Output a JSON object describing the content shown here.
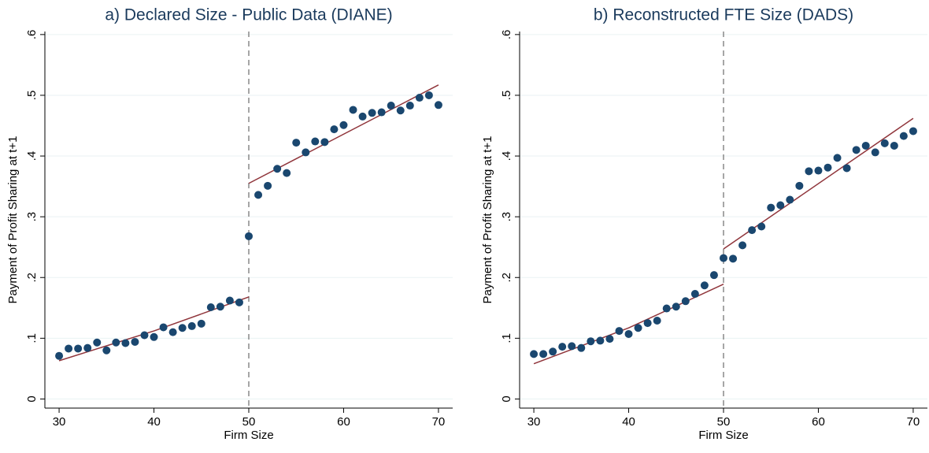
{
  "chart_data": [
    {
      "type": "scatter",
      "title": "a) Declared Size - Public Data (DIANE)",
      "xlabel": "Firm Size",
      "ylabel": "Payment of Profit Sharing at t+1",
      "x": [
        30,
        31,
        32,
        33,
        34,
        35,
        36,
        37,
        38,
        39,
        40,
        41,
        42,
        43,
        44,
        45,
        46,
        47,
        48,
        49,
        50,
        51,
        52,
        53,
        54,
        55,
        56,
        57,
        58,
        59,
        60,
        61,
        62,
        63,
        64,
        65,
        66,
        67,
        68,
        69,
        70
      ],
      "points": {
        "color": "#1a476f",
        "values": [
          0.071,
          0.083,
          0.083,
          0.084,
          0.093,
          0.08,
          0.093,
          0.092,
          0.094,
          0.105,
          0.102,
          0.118,
          0.11,
          0.117,
          0.12,
          0.124,
          0.151,
          0.152,
          0.162,
          0.159,
          0.268,
          0.336,
          0.351,
          0.379,
          0.372,
          0.422,
          0.406,
          0.424,
          0.423,
          0.444,
          0.451,
          0.476,
          0.465,
          0.471,
          0.472,
          0.483,
          0.475,
          0.483,
          0.496,
          0.5,
          0.484
        ]
      },
      "fits": [
        {
          "color": "#90353b",
          "x": [
            30,
            40,
            50
          ],
          "values": [
            0.063,
            0.112,
            0.168
          ]
        },
        {
          "color": "#90353b",
          "x": [
            50,
            70
          ],
          "values": [
            0.355,
            0.517
          ]
        }
      ],
      "cutoff": 50,
      "cutoff_color": "#888888",
      "xlim": [
        28.5,
        71.5
      ],
      "ylim": [
        -0.015,
        0.605
      ],
      "xticks": [
        30,
        40,
        50,
        60,
        70
      ],
      "yticks": [
        0,
        {
          "value": 0.1,
          "label": ".1"
        },
        {
          "value": 0.2,
          "label": ".2"
        },
        {
          "value": 0.3,
          "label": ".3"
        },
        {
          "value": 0.4,
          "label": ".4"
        },
        {
          "value": 0.5,
          "label": ".5"
        },
        {
          "value": 0.6,
          "label": ".6"
        }
      ],
      "grid": true
    },
    {
      "type": "scatter",
      "title": "b) Reconstructed FTE Size (DADS)",
      "xlabel": "Firm Size",
      "ylabel": "Payment of Profit Sharing at t+1",
      "x": [
        30,
        31,
        32,
        33,
        34,
        35,
        36,
        37,
        38,
        39,
        40,
        41,
        42,
        43,
        44,
        45,
        46,
        47,
        48,
        49,
        50,
        51,
        52,
        53,
        54,
        55,
        56,
        57,
        58,
        59,
        60,
        61,
        62,
        63,
        64,
        65,
        66,
        67,
        68,
        69,
        70
      ],
      "points": {
        "color": "#1a476f",
        "values": [
          0.074,
          0.074,
          0.078,
          0.086,
          0.087,
          0.084,
          0.095,
          0.096,
          0.099,
          0.112,
          0.107,
          0.117,
          0.125,
          0.129,
          0.149,
          0.152,
          0.161,
          0.173,
          0.187,
          0.204,
          0.232,
          0.231,
          0.253,
          0.278,
          0.284,
          0.315,
          0.319,
          0.328,
          0.351,
          0.375,
          0.376,
          0.381,
          0.397,
          0.38,
          0.41,
          0.417,
          0.406,
          0.421,
          0.417,
          0.433,
          0.441
        ]
      },
      "fits": [
        {
          "color": "#90353b",
          "x": [
            30,
            40,
            50
          ],
          "values": [
            0.058,
            0.117,
            0.189
          ]
        },
        {
          "color": "#90353b",
          "x": [
            50,
            70
          ],
          "values": [
            0.247,
            0.462
          ]
        }
      ],
      "cutoff": 50,
      "cutoff_color": "#888888",
      "xlim": [
        28.5,
        71.5
      ],
      "ylim": [
        -0.015,
        0.605
      ],
      "xticks": [
        30,
        40,
        50,
        60,
        70
      ],
      "yticks": [
        0,
        {
          "value": 0.1,
          "label": ".1"
        },
        {
          "value": 0.2,
          "label": ".2"
        },
        {
          "value": 0.3,
          "label": ".3"
        },
        {
          "value": 0.4,
          "label": ".4"
        },
        {
          "value": 0.5,
          "label": ".5"
        },
        {
          "value": 0.6,
          "label": ".6"
        }
      ],
      "grid": true
    }
  ]
}
